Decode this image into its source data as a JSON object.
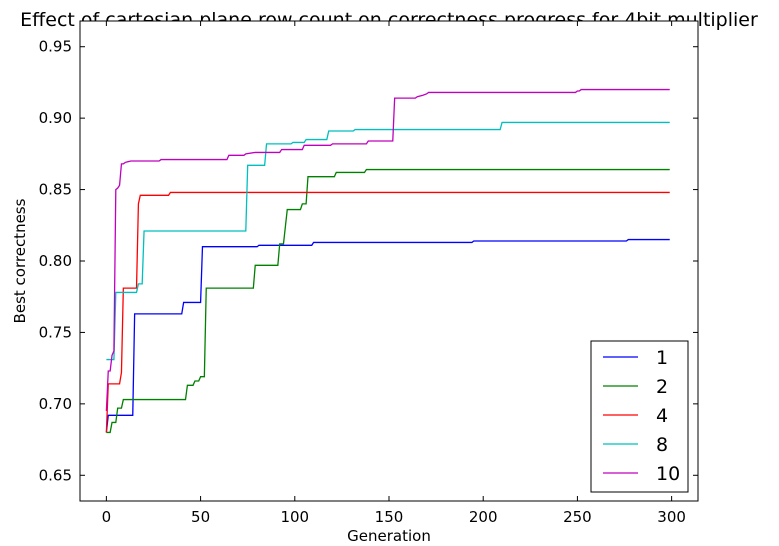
{
  "chart_data": {
    "type": "line",
    "title": "Effect of cartesian plane row count on correctness progress for 4bit multiplier",
    "xlabel": "Generation",
    "ylabel": "Best correctness",
    "xlim": [
      -14,
      314
    ],
    "ylim": [
      0.632,
      0.968
    ],
    "xticks": [
      "0",
      "50",
      "100",
      "150",
      "200",
      "250",
      "300"
    ],
    "yticks": [
      "0.65",
      "0.70",
      "0.75",
      "0.80",
      "0.85",
      "0.90",
      "0.95"
    ],
    "grid": false,
    "legend_position": "lower right",
    "series": [
      {
        "name": "1",
        "color": "#0000ff",
        "points": [
          [
            0,
            0.68
          ],
          [
            1,
            0.692
          ],
          [
            14,
            0.692
          ],
          [
            15,
            0.763
          ],
          [
            40,
            0.763
          ],
          [
            41,
            0.771
          ],
          [
            50,
            0.771
          ],
          [
            51,
            0.81
          ],
          [
            80,
            0.81
          ],
          [
            81,
            0.811
          ],
          [
            109,
            0.811
          ],
          [
            110,
            0.813
          ],
          [
            194,
            0.813
          ],
          [
            195,
            0.814
          ],
          [
            276,
            0.814
          ],
          [
            277,
            0.815
          ],
          [
            299,
            0.815
          ]
        ]
      },
      {
        "name": "2",
        "color": "#008000",
        "points": [
          [
            0,
            0.68
          ],
          [
            2,
            0.68
          ],
          [
            3,
            0.687
          ],
          [
            5,
            0.687
          ],
          [
            6,
            0.697
          ],
          [
            8,
            0.697
          ],
          [
            9,
            0.703
          ],
          [
            42,
            0.703
          ],
          [
            43,
            0.713
          ],
          [
            46,
            0.713
          ],
          [
            47,
            0.716
          ],
          [
            49,
            0.716
          ],
          [
            50,
            0.719
          ],
          [
            52,
            0.719
          ],
          [
            53,
            0.781
          ],
          [
            78,
            0.781
          ],
          [
            79,
            0.797
          ],
          [
            91,
            0.797
          ],
          [
            92,
            0.812
          ],
          [
            94,
            0.812
          ],
          [
            96,
            0.836
          ],
          [
            103,
            0.836
          ],
          [
            104,
            0.84
          ],
          [
            106,
            0.84
          ],
          [
            107,
            0.859
          ],
          [
            121,
            0.859
          ],
          [
            122,
            0.862
          ],
          [
            137,
            0.862
          ],
          [
            138,
            0.864
          ],
          [
            299,
            0.864
          ]
        ]
      },
      {
        "name": "4",
        "color": "#ff0000",
        "points": [
          [
            0,
            0.68
          ],
          [
            1,
            0.714
          ],
          [
            7,
            0.714
          ],
          [
            8,
            0.722
          ],
          [
            9,
            0.781
          ],
          [
            16,
            0.781
          ],
          [
            17,
            0.84
          ],
          [
            18,
            0.846
          ],
          [
            33,
            0.846
          ],
          [
            34,
            0.848
          ],
          [
            299,
            0.848
          ]
        ]
      },
      {
        "name": "8",
        "color": "#00bfbf",
        "points": [
          [
            0,
            0.731
          ],
          [
            4,
            0.731
          ],
          [
            5,
            0.778
          ],
          [
            16,
            0.778
          ],
          [
            17,
            0.784
          ],
          [
            19,
            0.784
          ],
          [
            20,
            0.821
          ],
          [
            74,
            0.821
          ],
          [
            75,
            0.867
          ],
          [
            84,
            0.867
          ],
          [
            85,
            0.882
          ],
          [
            98,
            0.882
          ],
          [
            99,
            0.883
          ],
          [
            105,
            0.883
          ],
          [
            106,
            0.885
          ],
          [
            117,
            0.885
          ],
          [
            118,
            0.891
          ],
          [
            131,
            0.891
          ],
          [
            132,
            0.892
          ],
          [
            209,
            0.892
          ],
          [
            210,
            0.897
          ],
          [
            299,
            0.897
          ]
        ]
      },
      {
        "name": "10",
        "color": "#bf00bf",
        "points": [
          [
            0,
            0.695
          ],
          [
            1,
            0.723
          ],
          [
            2,
            0.723
          ],
          [
            3,
            0.734
          ],
          [
            4,
            0.737
          ],
          [
            5,
            0.85
          ],
          [
            6,
            0.851
          ],
          [
            7,
            0.853
          ],
          [
            8,
            0.868
          ],
          [
            9,
            0.868
          ],
          [
            10,
            0.869
          ],
          [
            13,
            0.87
          ],
          [
            28,
            0.87
          ],
          [
            29,
            0.871
          ],
          [
            64,
            0.871
          ],
          [
            65,
            0.874
          ],
          [
            73,
            0.874
          ],
          [
            74,
            0.875
          ],
          [
            79,
            0.876
          ],
          [
            92,
            0.876
          ],
          [
            93,
            0.878
          ],
          [
            104,
            0.878
          ],
          [
            105,
            0.881
          ],
          [
            119,
            0.881
          ],
          [
            120,
            0.882
          ],
          [
            138,
            0.882
          ],
          [
            139,
            0.884
          ],
          [
            152,
            0.884
          ],
          [
            153,
            0.914
          ],
          [
            164,
            0.914
          ],
          [
            165,
            0.915
          ],
          [
            168,
            0.916
          ],
          [
            170,
            0.917
          ],
          [
            171,
            0.918
          ],
          [
            249,
            0.918
          ],
          [
            250,
            0.919
          ],
          [
            251,
            0.919
          ],
          [
            252,
            0.92
          ],
          [
            299,
            0.92
          ]
        ]
      }
    ]
  }
}
